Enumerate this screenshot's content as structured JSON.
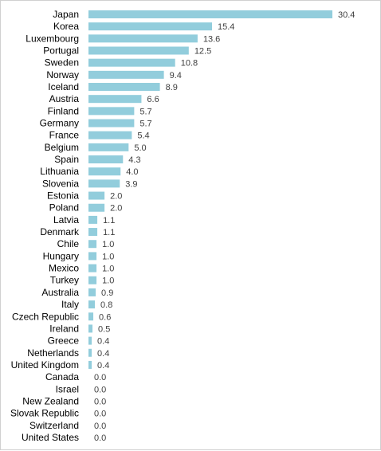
{
  "chart_data": {
    "type": "bar",
    "orientation": "horizontal",
    "title": "",
    "xlabel": "",
    "ylabel": "",
    "grid": false,
    "legend": "none",
    "bar_color": "#92CDDC",
    "xlim": [
      0,
      30.4
    ],
    "categories": [
      "Japan",
      "Korea",
      "Luxembourg",
      "Portugal",
      "Sweden",
      "Norway",
      "Iceland",
      "Austria",
      "Finland",
      "Germany",
      "France",
      "Belgium",
      "Spain",
      "Lithuania",
      "Slovenia",
      "Estonia",
      "Poland",
      "Latvia",
      "Denmark",
      "Chile",
      "Hungary",
      "Mexico",
      "Turkey",
      "Australia",
      "Italy",
      "Czech Republic",
      "Ireland",
      "Greece",
      "Netherlands",
      "United Kingdom",
      "Canada",
      "Israel",
      "New Zealand",
      "Slovak Republic",
      "Switzerland",
      "United States"
    ],
    "values": [
      30.4,
      15.4,
      13.6,
      12.5,
      10.8,
      9.4,
      8.9,
      6.6,
      5.7,
      5.7,
      5.4,
      5.0,
      4.3,
      4.0,
      3.9,
      2.0,
      2.0,
      1.1,
      1.1,
      1.0,
      1.0,
      1.0,
      1.0,
      0.9,
      0.8,
      0.6,
      0.5,
      0.4,
      0.4,
      0.4,
      0.0,
      0.0,
      0.0,
      0.0,
      0.0,
      0.0
    ],
    "value_labels": [
      "30.4",
      "15.4",
      "13.6",
      "12.5",
      "10.8",
      "9.4",
      "8.9",
      "6.6",
      "5.7",
      "5.7",
      "5.4",
      "5.0",
      "4.3",
      "4.0",
      "3.9",
      "2.0",
      "2.0",
      "1.1",
      "1.1",
      "1.0",
      "1.0",
      "1.0",
      "1.0",
      "0.9",
      "0.8",
      "0.6",
      "0.5",
      "0.4",
      "0.4",
      "0.4",
      "0.0",
      "0.0",
      "0.0",
      "0.0",
      "0.0",
      "0.0"
    ]
  }
}
